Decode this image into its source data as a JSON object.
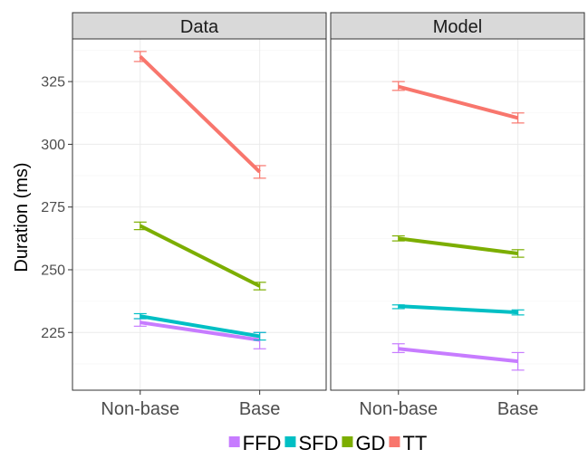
{
  "chart_data": {
    "type": "line",
    "ylabel": "Duration (ms)",
    "xlabel": "",
    "ylim": [
      202,
      342
    ],
    "yticks": [
      225,
      250,
      275,
      300,
      325
    ],
    "categories": [
      "Non-base",
      "Base"
    ],
    "legend_position": "bottom",
    "grid": true,
    "panels": [
      {
        "title": "Data",
        "series": [
          {
            "name": "FFD",
            "color": "#c77cff",
            "values": [
              229,
              222
            ],
            "err_low": [
              227.5,
              218.5
            ],
            "err_high": [
              230.5,
              225
            ]
          },
          {
            "name": "SFD",
            "color": "#00bfc4",
            "values": [
              231.5,
              223.5
            ],
            "err_low": [
              230.5,
              222
            ],
            "err_high": [
              232.5,
              225
            ]
          },
          {
            "name": "GD",
            "color": "#7cae00",
            "values": [
              267.5,
              243.5
            ],
            "err_low": [
              266,
              242
            ],
            "err_high": [
              269,
              245
            ]
          },
          {
            "name": "TT",
            "color": "#f8766d",
            "values": [
              335,
              289
            ],
            "err_low": [
              333,
              286.5
            ],
            "err_high": [
              337,
              291.5
            ]
          }
        ]
      },
      {
        "title": "Model",
        "series": [
          {
            "name": "FFD",
            "color": "#c77cff",
            "values": [
              218.5,
              213.5
            ],
            "err_low": [
              217,
              210
            ],
            "err_high": [
              220.5,
              217
            ]
          },
          {
            "name": "SFD",
            "color": "#00bfc4",
            "values": [
              235.5,
              233
            ],
            "err_low": [
              234.5,
              232
            ],
            "err_high": [
              236,
              234
            ]
          },
          {
            "name": "GD",
            "color": "#7cae00",
            "values": [
              262.5,
              256.5
            ],
            "err_low": [
              261.5,
              255
            ],
            "err_high": [
              263.5,
              258
            ]
          },
          {
            "name": "TT",
            "color": "#f8766d",
            "values": [
              323,
              310.5
            ],
            "err_low": [
              321.5,
              308.5
            ],
            "err_high": [
              325,
              312.5
            ]
          }
        ]
      }
    ]
  },
  "legend": {
    "items": [
      {
        "label": "FFD",
        "color": "#c77cff"
      },
      {
        "label": "SFD",
        "color": "#00bfc4"
      },
      {
        "label": "GD",
        "color": "#7cae00"
      },
      {
        "label": "TT",
        "color": "#f8766d"
      }
    ]
  }
}
